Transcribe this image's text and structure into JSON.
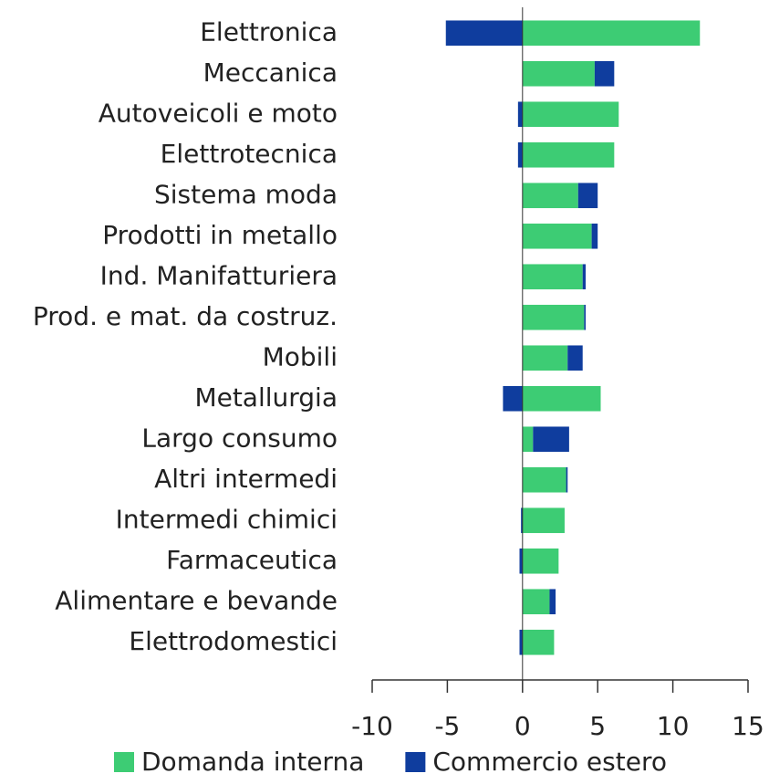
{
  "chart_data": {
    "type": "bar",
    "orientation": "horizontal",
    "stacked": true,
    "categories": [
      "Elettronica",
      "Meccanica",
      "Autoveicoli e moto",
      "Elettrotecnica",
      "Sistema moda",
      "Prodotti in metallo",
      "Ind. Manifatturiera",
      "Prod. e mat. da costruz.",
      "Mobili",
      "Metallurgia",
      "Largo consumo",
      "Altri intermedi",
      "Intermedi chimici",
      "Farmaceutica",
      "Alimentare e bevande",
      "Elettrodomestici"
    ],
    "series": [
      {
        "name": "Domanda interna",
        "color": "#3dcc74",
        "values": [
          11.8,
          4.8,
          6.4,
          6.1,
          3.7,
          4.6,
          4.0,
          4.1,
          3.0,
          5.2,
          0.7,
          2.9,
          2.8,
          2.4,
          1.8,
          2.1
        ]
      },
      {
        "name": "Commercio estero",
        "color": "#0f3d9e",
        "values": [
          -5.1,
          1.3,
          -0.3,
          -0.3,
          1.3,
          0.4,
          0.2,
          0.1,
          1.0,
          -1.3,
          2.4,
          0.1,
          -0.1,
          -0.2,
          0.4,
          -0.2
        ]
      }
    ],
    "xlim": [
      -10,
      15
    ],
    "xticks": [
      -10,
      -5,
      0,
      5,
      10,
      15
    ],
    "legend": "bottom"
  }
}
